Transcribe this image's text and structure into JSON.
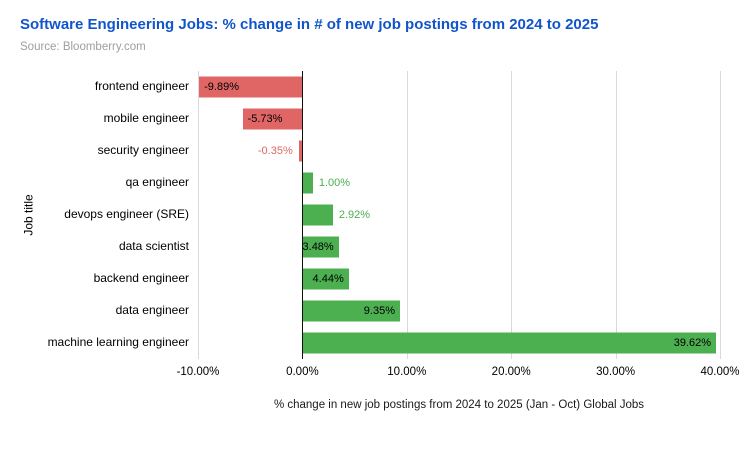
{
  "header": {
    "title": "Software Engineering Jobs: % change in # of new job postings from 2024 to 2025",
    "source": "Source: Bloomberry.com"
  },
  "colors": {
    "positive_bar": "#4caf50",
    "negative_bar": "#e06666",
    "title": "#1155cc",
    "source_text": "#9e9e9e",
    "gridline": "#d9d9d9",
    "zero_line": "#111111",
    "positive_label": "#4caf50",
    "negative_label": "#e06666",
    "inside_label": "#000000"
  },
  "chart_data": {
    "type": "bar",
    "orientation": "horizontal",
    "title": "Software Engineering Jobs: % change in # of new job postings from 2024 to 2025",
    "xlabel": "% change in new job postings from 2024 to 2025 (Jan - Oct) Global Jobs",
    "ylabel": "Job title",
    "xlim": [
      -10,
      40
    ],
    "grid": "vertical",
    "legend": "none",
    "categories": [
      "frontend engineer",
      "mobile engineer",
      "security engineer",
      "qa engineer",
      "devops engineer (SRE)",
      "data scientist",
      "backend engineer",
      "data engineer",
      "machine learning engineer"
    ],
    "values": [
      -9.89,
      -5.73,
      -0.35,
      1.0,
      2.92,
      3.48,
      4.44,
      9.35,
      39.62
    ],
    "xticks": [
      {
        "label": "-10.00%",
        "value": -10
      },
      {
        "label": "0.00%",
        "value": 0
      },
      {
        "label": "10.00%",
        "value": 10
      },
      {
        "label": "20.00%",
        "value": 20
      },
      {
        "label": "30.00%",
        "value": 30
      },
      {
        "label": "40.00%",
        "value": 40
      }
    ],
    "bars": [
      {
        "category": "frontend engineer",
        "value": -9.89,
        "display": "-9.89%",
        "bar_color": "#e06666",
        "label_pos": "inside",
        "label_color": "#000000"
      },
      {
        "category": "mobile engineer",
        "value": -5.73,
        "display": "-5.73%",
        "bar_color": "#e06666",
        "label_pos": "inside",
        "label_color": "#000000"
      },
      {
        "category": "security engineer",
        "value": -0.35,
        "display": "-0.35%",
        "bar_color": "#e06666",
        "label_pos": "outside",
        "label_color": "#e06666"
      },
      {
        "category": "qa engineer",
        "value": 1.0,
        "display": "1.00%",
        "bar_color": "#4caf50",
        "label_pos": "outside",
        "label_color": "#4caf50"
      },
      {
        "category": "devops engineer (SRE)",
        "value": 2.92,
        "display": "2.92%",
        "bar_color": "#4caf50",
        "label_pos": "outside",
        "label_color": "#4caf50"
      },
      {
        "category": "data scientist",
        "value": 3.48,
        "display": "3.48%",
        "bar_color": "#4caf50",
        "label_pos": "inside",
        "label_color": "#000000"
      },
      {
        "category": "backend engineer",
        "value": 4.44,
        "display": "4.44%",
        "bar_color": "#4caf50",
        "label_pos": "inside",
        "label_color": "#000000"
      },
      {
        "category": "data engineer",
        "value": 9.35,
        "display": "9.35%",
        "bar_color": "#4caf50",
        "label_pos": "inside",
        "label_color": "#000000"
      },
      {
        "category": "machine learning engineer",
        "value": 39.62,
        "display": "39.62%",
        "bar_color": "#4caf50",
        "label_pos": "inside",
        "label_color": "#000000"
      }
    ]
  }
}
